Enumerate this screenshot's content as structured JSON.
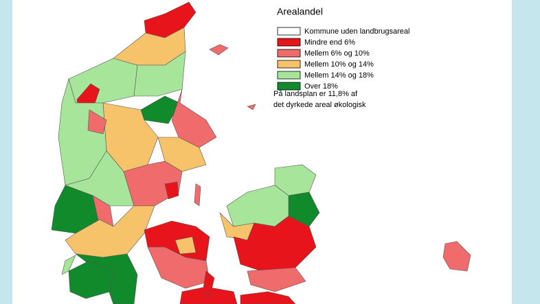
{
  "legend": {
    "title": "Arealandel",
    "items": [
      {
        "label": "Kommune uden landbrugsareal",
        "color": "#ffffff"
      },
      {
        "label": "Mindre end 6%",
        "color": "#e8141c"
      },
      {
        "label": "Mellem 6% og 10%",
        "color": "#f06b6b"
      },
      {
        "label": "Mellem 10% og 14%",
        "color": "#f7c36a"
      },
      {
        "label": "Mellem 14% og 18%",
        "color": "#a6e59a"
      },
      {
        "label": "Over 18%",
        "color": "#118a2c"
      }
    ]
  },
  "note": [
    "På landsplan er 11,8% af",
    "det dyrkede areal økologisk"
  ]
}
